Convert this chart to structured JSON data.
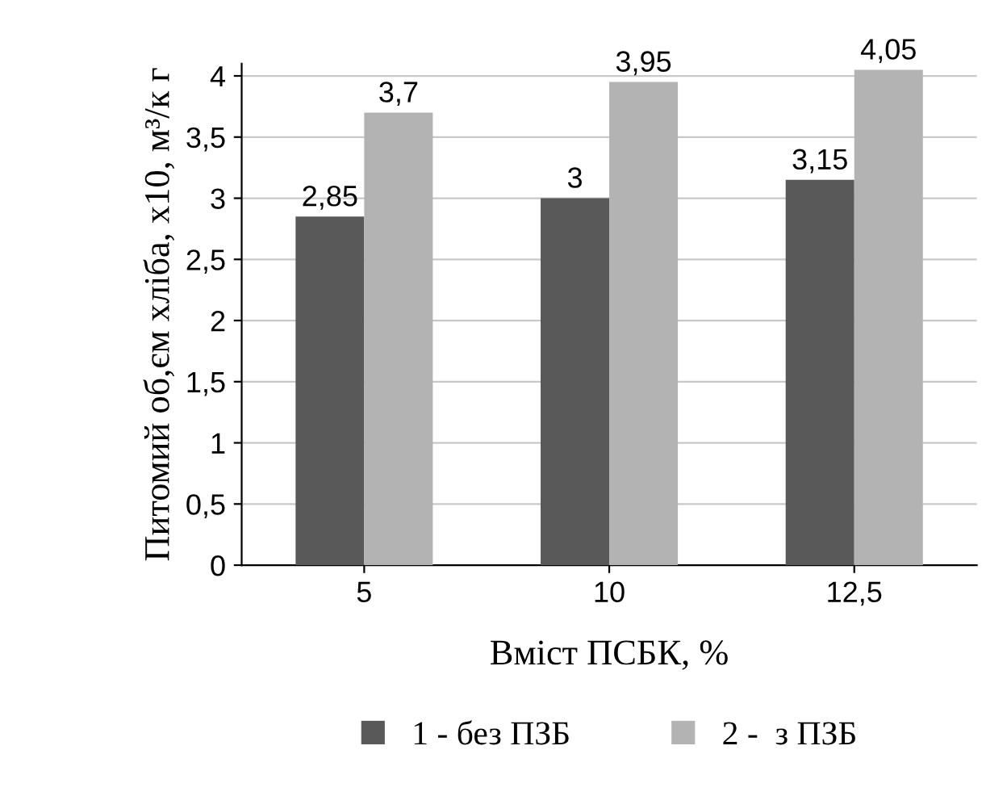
{
  "chart_data": {
    "type": "bar",
    "xlabel": "Вміст ПСБК, %",
    "ylabel": "Питомий об,єм хліба, х10, м³/к г",
    "categories": [
      "5",
      "10",
      "12,5"
    ],
    "series": [
      {
        "name": "1 - без ПЗБ",
        "color": "#595959",
        "values": [
          2.85,
          3,
          3.15
        ],
        "value_labels": [
          "2,85",
          "3",
          "3,15"
        ]
      },
      {
        "name": "2 -  з ПЗБ",
        "color": "#b3b3b3",
        "values": [
          3.7,
          3.95,
          4.05
        ],
        "value_labels": [
          "3,7",
          "3,95",
          "4,05"
        ]
      }
    ],
    "ylim": [
      0,
      4.1
    ],
    "yticks": [
      0,
      {
        "value": 0.5,
        "label": "0,5"
      },
      1,
      {
        "value": 1.5,
        "label": "1,5"
      },
      2,
      {
        "value": 2.5,
        "label": "2,5"
      },
      3,
      {
        "value": 3.5,
        "label": "3,5"
      },
      4
    ],
    "grid": "y",
    "legend": "bottom"
  }
}
